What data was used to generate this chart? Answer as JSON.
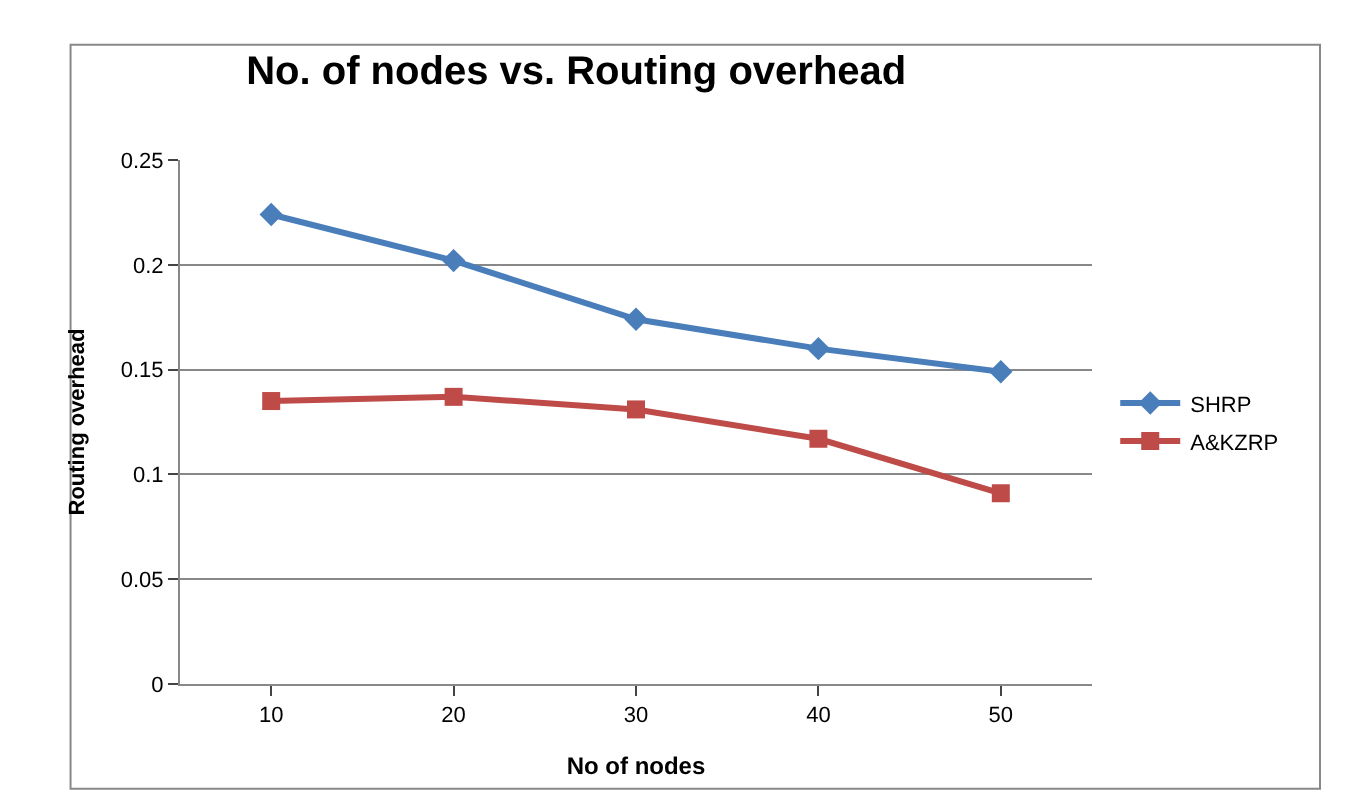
{
  "chart_data": {
    "type": "line",
    "title": "No. of nodes vs. Routing overhead",
    "xlabel": "No of nodes",
    "ylabel": "Routing overhead",
    "categories": [
      "10",
      "20",
      "30",
      "40",
      "50"
    ],
    "series": [
      {
        "name": "SHRP",
        "color": "#4a7ebb",
        "marker": "diamond",
        "values": [
          0.224,
          0.202,
          0.174,
          0.16,
          0.149
        ]
      },
      {
        "name": "A&KZRP",
        "color": "#be4b48",
        "marker": "square",
        "values": [
          0.135,
          0.137,
          0.131,
          0.117,
          0.091
        ]
      }
    ],
    "ylim": [
      0,
      0.25
    ],
    "yticks": [
      0,
      0.05,
      0.1,
      0.15,
      0.2,
      0.25
    ],
    "grid": "y",
    "legend": "right",
    "line_style": "solid"
  }
}
